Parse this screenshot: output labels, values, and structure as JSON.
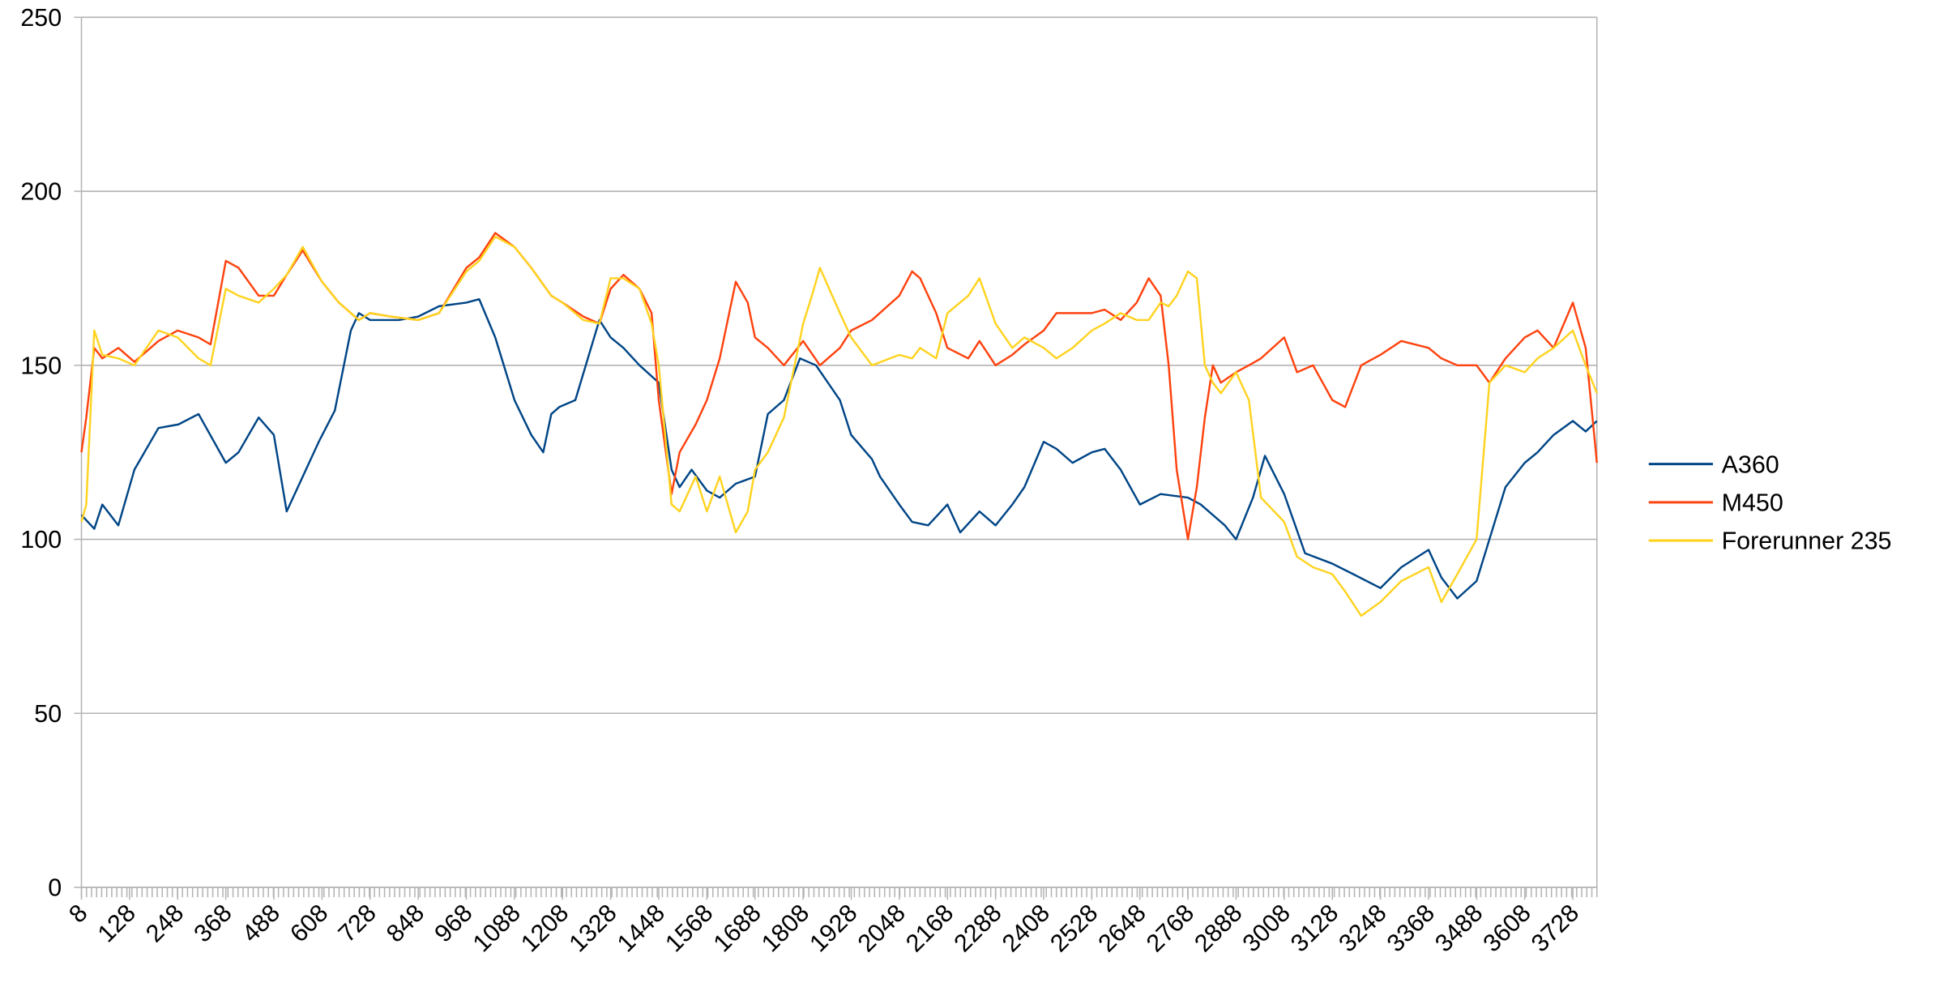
{
  "chart_data": {
    "type": "line",
    "title": "",
    "xlabel": "",
    "ylabel": "",
    "ylim": [
      0,
      250
    ],
    "yticks": [
      0,
      50,
      100,
      150,
      200,
      250
    ],
    "xlim": [
      8,
      3788
    ],
    "xtick_labels": [
      "8",
      "128",
      "248",
      "368",
      "488",
      "608",
      "728",
      "848",
      "968",
      "1088",
      "1208",
      "1328",
      "1448",
      "1568",
      "1688",
      "1808",
      "1928",
      "2048",
      "2168",
      "2288",
      "2408",
      "2528",
      "2648",
      "2768",
      "2888",
      "3008",
      "3128",
      "3248",
      "3368",
      "3488",
      "3608",
      "3728"
    ],
    "grid": "horizontal",
    "legend": "right",
    "colors": {
      "A360": "#004586",
      "M450": "#ff420e",
      "Forerunner 235": "#ffd320"
    },
    "series": [
      {
        "name": "A360",
        "color": "#004586",
        "x": [
          8,
          40,
          60,
          100,
          140,
          200,
          250,
          300,
          368,
          400,
          450,
          488,
          520,
          560,
          600,
          640,
          680,
          700,
          728,
          800,
          848,
          900,
          968,
          1000,
          1040,
          1088,
          1130,
          1160,
          1180,
          1200,
          1240,
          1300,
          1328,
          1360,
          1400,
          1448,
          1480,
          1500,
          1530,
          1568,
          1600,
          1640,
          1688,
          1720,
          1760,
          1800,
          1840,
          1900,
          1928,
          1980,
          2000,
          2048,
          2080,
          2120,
          2168,
          2200,
          2248,
          2288,
          2330,
          2360,
          2408,
          2440,
          2480,
          2528,
          2560,
          2600,
          2648,
          2700,
          2768,
          2800,
          2860,
          2888,
          2930,
          2960,
          3008,
          3060,
          3128,
          3180,
          3248,
          3300,
          3368,
          3400,
          3440,
          3488,
          3520,
          3560,
          3608,
          3640,
          3680,
          3728,
          3760,
          3788
        ],
        "values": [
          107,
          103,
          110,
          104,
          120,
          132,
          133,
          136,
          122,
          125,
          135,
          130,
          108,
          118,
          128,
          137,
          160,
          165,
          163,
          163,
          164,
          167,
          168,
          169,
          158,
          140,
          130,
          125,
          136,
          138,
          140,
          163,
          158,
          155,
          150,
          145,
          120,
          115,
          120,
          114,
          112,
          116,
          118,
          136,
          140,
          152,
          150,
          140,
          130,
          123,
          118,
          110,
          105,
          104,
          110,
          102,
          108,
          104,
          110,
          115,
          128,
          126,
          122,
          125,
          126,
          120,
          110,
          113,
          112,
          110,
          104,
          100,
          112,
          124,
          113,
          96,
          93,
          90,
          86,
          92,
          97,
          89,
          83,
          88,
          100,
          115,
          122,
          125,
          130,
          134,
          131,
          134
        ]
      },
      {
        "name": "M450",
        "color": "#ff420e",
        "x": [
          8,
          20,
          40,
          60,
          100,
          140,
          200,
          248,
          300,
          330,
          368,
          400,
          450,
          488,
          520,
          560,
          608,
          650,
          700,
          728,
          780,
          848,
          900,
          968,
          1000,
          1040,
          1088,
          1130,
          1180,
          1208,
          1260,
          1300,
          1328,
          1360,
          1400,
          1430,
          1448,
          1480,
          1500,
          1540,
          1568,
          1600,
          1640,
          1670,
          1688,
          1720,
          1760,
          1808,
          1850,
          1900,
          1928,
          1980,
          2048,
          2080,
          2100,
          2140,
          2168,
          2220,
          2248,
          2288,
          2330,
          2360,
          2408,
          2440,
          2480,
          2528,
          2560,
          2600,
          2640,
          2670,
          2700,
          2720,
          2740,
          2768,
          2790,
          2810,
          2830,
          2850,
          2888,
          2920,
          2950,
          3008,
          3040,
          3080,
          3128,
          3160,
          3200,
          3248,
          3300,
          3368,
          3400,
          3440,
          3488,
          3520,
          3560,
          3608,
          3640,
          3680,
          3728,
          3760,
          3788
        ],
        "values": [
          125,
          135,
          155,
          152,
          155,
          151,
          157,
          160,
          158,
          156,
          180,
          178,
          170,
          170,
          176,
          183,
          174,
          168,
          163,
          165,
          164,
          163,
          165,
          178,
          181,
          188,
          184,
          178,
          170,
          168,
          164,
          162,
          172,
          176,
          172,
          165,
          140,
          113,
          125,
          133,
          140,
          152,
          174,
          168,
          158,
          155,
          150,
          157,
          150,
          155,
          160,
          163,
          170,
          177,
          175,
          165,
          155,
          152,
          157,
          150,
          153,
          156,
          160,
          165,
          165,
          165,
          166,
          163,
          168,
          175,
          170,
          150,
          120,
          100,
          115,
          135,
          150,
          145,
          148,
          150,
          152,
          158,
          148,
          150,
          140,
          138,
          150,
          153,
          157,
          155,
          152,
          150,
          150,
          145,
          152,
          158,
          160,
          155,
          168,
          155,
          122
        ]
      },
      {
        "name": "Forerunner 235",
        "color": "#ffd320",
        "x": [
          8,
          20,
          40,
          60,
          100,
          140,
          200,
          248,
          300,
          330,
          368,
          400,
          450,
          488,
          520,
          560,
          608,
          650,
          700,
          728,
          780,
          848,
          900,
          968,
          1000,
          1040,
          1088,
          1130,
          1180,
          1208,
          1260,
          1300,
          1328,
          1360,
          1400,
          1430,
          1448,
          1480,
          1500,
          1540,
          1568,
          1600,
          1640,
          1670,
          1688,
          1720,
          1760,
          1808,
          1830,
          1850,
          1900,
          1928,
          1980,
          2048,
          2080,
          2100,
          2140,
          2168,
          2220,
          2248,
          2288,
          2330,
          2360,
          2408,
          2440,
          2480,
          2528,
          2560,
          2600,
          2640,
          2670,
          2700,
          2720,
          2740,
          2768,
          2790,
          2810,
          2830,
          2850,
          2888,
          2920,
          2950,
          3008,
          3040,
          3080,
          3128,
          3160,
          3200,
          3248,
          3300,
          3368,
          3400,
          3440,
          3488,
          3520,
          3560,
          3608,
          3640,
          3680,
          3728,
          3760,
          3788
        ],
        "values": [
          105,
          110,
          160,
          153,
          152,
          150,
          160,
          158,
          152,
          150,
          172,
          170,
          168,
          172,
          176,
          184,
          174,
          168,
          163,
          165,
          164,
          163,
          165,
          177,
          180,
          187,
          184,
          178,
          170,
          168,
          163,
          162,
          175,
          175,
          172,
          162,
          150,
          110,
          108,
          118,
          108,
          118,
          102,
          108,
          120,
          125,
          135,
          162,
          170,
          178,
          165,
          158,
          150,
          153,
          152,
          155,
          152,
          165,
          170,
          175,
          162,
          155,
          158,
          155,
          152,
          155,
          160,
          162,
          165,
          163,
          163,
          168,
          167,
          170,
          177,
          175,
          150,
          145,
          142,
          148,
          140,
          112,
          105,
          95,
          92,
          90,
          85,
          78,
          82,
          88,
          92,
          82,
          90,
          100,
          145,
          150,
          148,
          152,
          155,
          160,
          150,
          142
        ]
      }
    ]
  }
}
